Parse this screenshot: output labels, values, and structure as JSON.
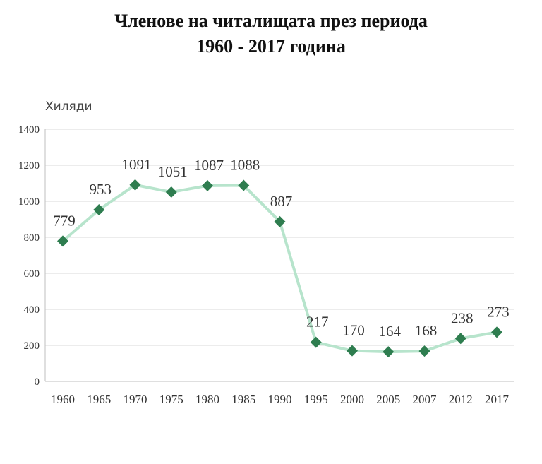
{
  "chart_data": {
    "type": "line",
    "title_line1": "Членове на читалищата през периода",
    "title_line2": "1960 - 2017 година",
    "ylabel": "Хиляди",
    "categories": [
      "1960",
      "1965",
      "1970",
      "1975",
      "1980",
      "1985",
      "1990",
      "1995",
      "2000",
      "2005",
      "2007",
      "2012",
      "2017"
    ],
    "values": [
      779,
      953,
      1091,
      1051,
      1087,
      1088,
      887,
      217,
      170,
      164,
      168,
      238,
      273
    ],
    "ylim": [
      0,
      1400
    ],
    "yticks": [
      0,
      200,
      400,
      600,
      800,
      1000,
      1200,
      1400
    ],
    "grid": true,
    "colors": {
      "line": "#b7e4cc",
      "marker": "#2e7d4f",
      "grid": "#d9d9d9"
    }
  }
}
